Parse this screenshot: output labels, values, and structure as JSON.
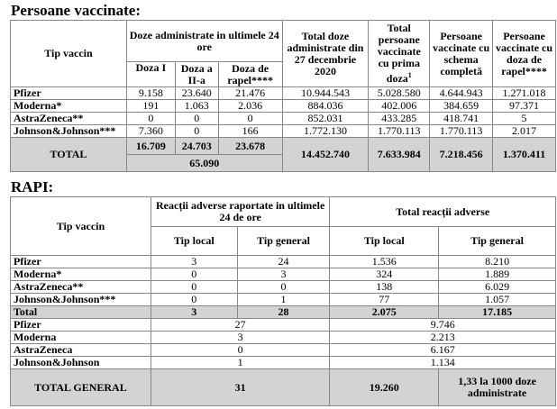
{
  "vaccinated": {
    "title": "Persoane vaccinate:",
    "headers": {
      "type": "Tip vaccin",
      "last24": "Doze administrate in ultimele 24 ore",
      "dose1": "Doza I",
      "dose2": "Doza a II-a",
      "booster": "Doza de rapel****",
      "total_doses": "Total doze administrate din 27 decembrie 2020",
      "first_dose": "Total persoane vaccinate cu prima doza",
      "first_dose_sup": "1",
      "complete": "Persoane vaccinate cu schema completă",
      "booster_people": "Persoane vaccinate cu doza de rapel****"
    },
    "rows": [
      [
        "Pfizer",
        "9.158",
        "23.640",
        "21.476",
        "10.944.543",
        "5.028.580",
        "4.644.943",
        "1.271.018"
      ],
      [
        "Moderna*",
        "191",
        "1.063",
        "2.036",
        "884.036",
        "402.006",
        "384.659",
        "97.371"
      ],
      [
        "AstraZeneca**",
        "0",
        "0",
        "0",
        "852.031",
        "433.285",
        "418.741",
        "5"
      ],
      [
        "Johnson&Johnson***",
        "7.360",
        "0",
        "166",
        "1.772.130",
        "1.770.113",
        "1.770.113",
        "2.017"
      ]
    ],
    "total": {
      "label": "TOTAL",
      "dose1": "16.709",
      "dose2": "24.703",
      "booster": "23.678",
      "last24_sum": "65.090",
      "total_doses": "14.452.740",
      "first_dose": "7.633.984",
      "complete": "7.218.456",
      "booster_people": "1.370.411"
    }
  },
  "rapi": {
    "title": "RAPI:",
    "headers": {
      "type": "Tip vaccin",
      "last24": "Reacții adverse raportate in ultimele 24 de ore",
      "total": "Total reacții adverse",
      "local": "Tip local",
      "general": "Tip general"
    },
    "rows": [
      [
        "Pfizer",
        "3",
        "24",
        "1.536",
        "8.210"
      ],
      [
        "Moderna*",
        "0",
        "3",
        "324",
        "1.889"
      ],
      [
        "AstraZeneca**",
        "0",
        "0",
        "138",
        "6.029"
      ],
      [
        "Johnson&Johnson***",
        "0",
        "1",
        "77",
        "1.057"
      ]
    ],
    "total": [
      "Total",
      "3",
      "28",
      "2.075",
      "17.185"
    ],
    "sums": [
      [
        "Pfizer",
        "27",
        "9.746"
      ],
      [
        "Moderna",
        "3",
        "2.213"
      ],
      [
        "AstraZeneca",
        "0",
        "6.167"
      ],
      [
        "Johnson&Johnson",
        "1",
        "1.134"
      ]
    ],
    "grand": {
      "label": "TOTAL GENERAL",
      "last24": "31",
      "total": "19.260",
      "rate": "1,33 la 1000 doze administrate"
    }
  }
}
